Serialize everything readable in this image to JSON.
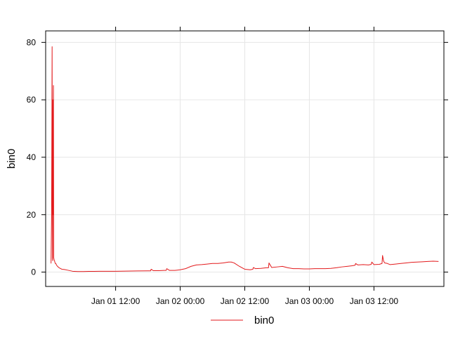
{
  "chart_data": {
    "type": "line",
    "title": "",
    "xlabel": "",
    "ylabel": "bin0",
    "x_unit": "hours",
    "x_ticks": [
      {
        "value": 12,
        "label": "Jan 01 12:00"
      },
      {
        "value": 24,
        "label": "Jan 02 00:00"
      },
      {
        "value": 36,
        "label": "Jan 02 12:00"
      },
      {
        "value": 48,
        "label": "Jan 03 00:00"
      },
      {
        "value": 60,
        "label": "Jan 03 12:00"
      }
    ],
    "y_ticks": [
      0,
      20,
      40,
      60,
      80
    ],
    "xlim": [
      -1.0,
      73.0
    ],
    "ylim": [
      -5,
      84
    ],
    "grid": true,
    "legend": {
      "position": "bottom",
      "entries": [
        "bin0"
      ]
    },
    "colors": {
      "series": "#e31a1c",
      "grid": "#e6e6e6",
      "axis": "#000000"
    },
    "series": [
      {
        "name": "bin0",
        "x": [
          0.0,
          0.1,
          0.2,
          0.25,
          0.3,
          0.35,
          0.4,
          0.45,
          0.5,
          0.55,
          0.6,
          0.65,
          0.7,
          0.8,
          0.9,
          1.0,
          1.2,
          1.5,
          2.0,
          2.5,
          3.0,
          4.0,
          5.0,
          6.0,
          7.0,
          8.0,
          9.0,
          10.0,
          12.0,
          14.0,
          16.0,
          18.0,
          18.5,
          18.6,
          19.0,
          20.0,
          21.0,
          21.4,
          21.5,
          22.0,
          23.0,
          24.0,
          25.0,
          26.0,
          27.0,
          28.0,
          29.0,
          30.0,
          31.0,
          32.0,
          33.0,
          33.5,
          34.0,
          35.0,
          36.0,
          37.0,
          37.5,
          37.6,
          38.0,
          39.0,
          40.0,
          40.4,
          40.5,
          41.0,
          42.0,
          43.0,
          44.0,
          45.0,
          46.0,
          47.0,
          48.0,
          49.0,
          50.0,
          51.0,
          52.0,
          53.0,
          54.0,
          55.0,
          56.0,
          56.5,
          56.6,
          57.0,
          58.0,
          59.0,
          59.5,
          59.6,
          60.0,
          61.0,
          61.5,
          61.6,
          61.8,
          62.0,
          62.5,
          63.0,
          64.0,
          65.0,
          66.0,
          67.0,
          68.0,
          69.0,
          70.0,
          71.0,
          72.0
        ],
        "y": [
          3,
          20,
          78.5,
          5,
          4,
          60,
          20,
          65,
          5,
          4.5,
          4,
          4,
          3.5,
          3,
          3,
          2.5,
          2,
          1.5,
          1,
          0.9,
          0.7,
          0.3,
          0.2,
          0.2,
          0.25,
          0.25,
          0.3,
          0.3,
          0.3,
          0.35,
          0.4,
          0.45,
          0.45,
          1.0,
          0.5,
          0.5,
          0.6,
          0.6,
          1.2,
          0.6,
          0.6,
          0.8,
          1.2,
          2.0,
          2.5,
          2.6,
          2.8,
          3.0,
          3.0,
          3.2,
          3.5,
          3.5,
          3.2,
          2.0,
          1.0,
          0.8,
          1.0,
          1.6,
          1.2,
          1.3,
          1.5,
          1.5,
          3.2,
          1.6,
          1.8,
          2.0,
          1.5,
          1.2,
          1.2,
          1.1,
          1.1,
          1.2,
          1.2,
          1.2,
          1.3,
          1.5,
          1.8,
          2.0,
          2.2,
          2.4,
          3.0,
          2.5,
          2.6,
          2.5,
          2.7,
          3.5,
          2.6,
          2.7,
          3.0,
          5.8,
          3.8,
          3.2,
          3.0,
          2.6,
          2.8,
          3.0,
          3.2,
          3.4,
          3.5,
          3.6,
          3.7,
          3.8,
          3.7
        ]
      }
    ]
  }
}
